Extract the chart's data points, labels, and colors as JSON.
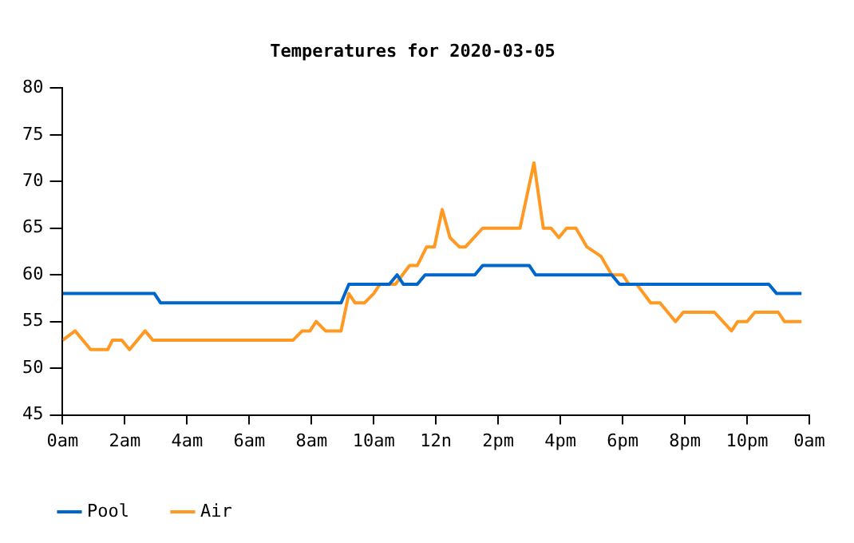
{
  "chart_data": {
    "type": "line",
    "title": "Temperatures for 2020-03-05",
    "xlim": [
      "2020-03-05T00:00",
      "2020-03-06T00:00"
    ],
    "xticks": [
      {
        "value": "2020-03-05T00:00",
        "label": "0am"
      },
      {
        "value": "2020-03-05T02:00",
        "label": "2am"
      },
      {
        "value": "2020-03-05T04:00",
        "label": "4am"
      },
      {
        "value": "2020-03-05T06:00",
        "label": "6am"
      },
      {
        "value": "2020-03-05T08:00",
        "label": "8am"
      },
      {
        "value": "2020-03-05T10:00",
        "label": "10am"
      },
      {
        "value": "2020-03-05T12:00",
        "label": "12n"
      },
      {
        "value": "2020-03-05T14:00",
        "label": "2pm"
      },
      {
        "value": "2020-03-05T16:00",
        "label": "4pm"
      },
      {
        "value": "2020-03-05T18:00",
        "label": "6pm"
      },
      {
        "value": "2020-03-05T20:00",
        "label": "8pm"
      },
      {
        "value": "2020-03-05T22:00",
        "label": "10pm"
      },
      {
        "value": "2020-03-06T00:00",
        "label": "0am"
      }
    ],
    "ylim": [
      45,
      80
    ],
    "yticks": [
      45,
      50,
      55,
      60,
      65,
      70,
      75,
      80
    ],
    "grid": false,
    "legend": "bottom",
    "marker": "none",
    "line_style": "solid",
    "series": [
      {
        "name": "Pool",
        "color": "#0066cc",
        "x": [
          "2020-03-05T00:00",
          "2020-03-05T02:57",
          "2020-03-05T03:09",
          "2020-03-05T08:57",
          "2020-03-05T09:12",
          "2020-03-05T10:30",
          "2020-03-05T10:45",
          "2020-03-05T10:57",
          "2020-03-05T11:24",
          "2020-03-05T11:39",
          "2020-03-05T13:15",
          "2020-03-05T13:30",
          "2020-03-05T15:00",
          "2020-03-05T15:12",
          "2020-03-05T17:39",
          "2020-03-05T17:54",
          "2020-03-05T22:42",
          "2020-03-05T22:57",
          "2020-03-05T23:45"
        ],
        "values": [
          58,
          58,
          57,
          57,
          59,
          59,
          60,
          59,
          59,
          60,
          60,
          61,
          61,
          60,
          60,
          59,
          59,
          58,
          58
        ]
      },
      {
        "name": "Air",
        "color": "#ff9922",
        "x": [
          "2020-03-05T00:00",
          "2020-03-05T00:24",
          "2020-03-05T00:54",
          "2020-03-05T01:27",
          "2020-03-05T01:36",
          "2020-03-05T01:54",
          "2020-03-05T02:09",
          "2020-03-05T02:39",
          "2020-03-05T02:54",
          "2020-03-05T07:24",
          "2020-03-05T07:42",
          "2020-03-05T07:57",
          "2020-03-05T08:09",
          "2020-03-05T08:27",
          "2020-03-05T08:57",
          "2020-03-05T09:12",
          "2020-03-05T09:24",
          "2020-03-05T09:42",
          "2020-03-05T10:00",
          "2020-03-05T10:12",
          "2020-03-05T10:42",
          "2020-03-05T11:09",
          "2020-03-05T11:24",
          "2020-03-05T11:42",
          "2020-03-05T11:57",
          "2020-03-05T12:12",
          "2020-03-05T12:27",
          "2020-03-05T12:45",
          "2020-03-05T12:57",
          "2020-03-05T13:30",
          "2020-03-05T14:42",
          "2020-03-05T15:09",
          "2020-03-05T15:27",
          "2020-03-05T15:42",
          "2020-03-05T15:57",
          "2020-03-05T16:12",
          "2020-03-05T16:30",
          "2020-03-05T16:51",
          "2020-03-05T17:18",
          "2020-03-05T17:39",
          "2020-03-05T18:00",
          "2020-03-05T18:12",
          "2020-03-05T18:27",
          "2020-03-05T18:54",
          "2020-03-05T19:12",
          "2020-03-05T19:42",
          "2020-03-05T19:57",
          "2020-03-05T20:57",
          "2020-03-05T21:30",
          "2020-03-05T21:42",
          "2020-03-05T22:00",
          "2020-03-05T22:15",
          "2020-03-05T23:00",
          "2020-03-05T23:12",
          "2020-03-05T23:45"
        ],
        "values": [
          53,
          54,
          52,
          52,
          53,
          53,
          52,
          54,
          53,
          53,
          54,
          54,
          55,
          54,
          54,
          58,
          57,
          57,
          58,
          59,
          59,
          61,
          61,
          63,
          63,
          67,
          64,
          63,
          63,
          65,
          65,
          72,
          65,
          65,
          64,
          65,
          65,
          63,
          62,
          60,
          60,
          59,
          59,
          57,
          57,
          55,
          56,
          56,
          54,
          55,
          55,
          56,
          56,
          55,
          55
        ]
      }
    ]
  }
}
